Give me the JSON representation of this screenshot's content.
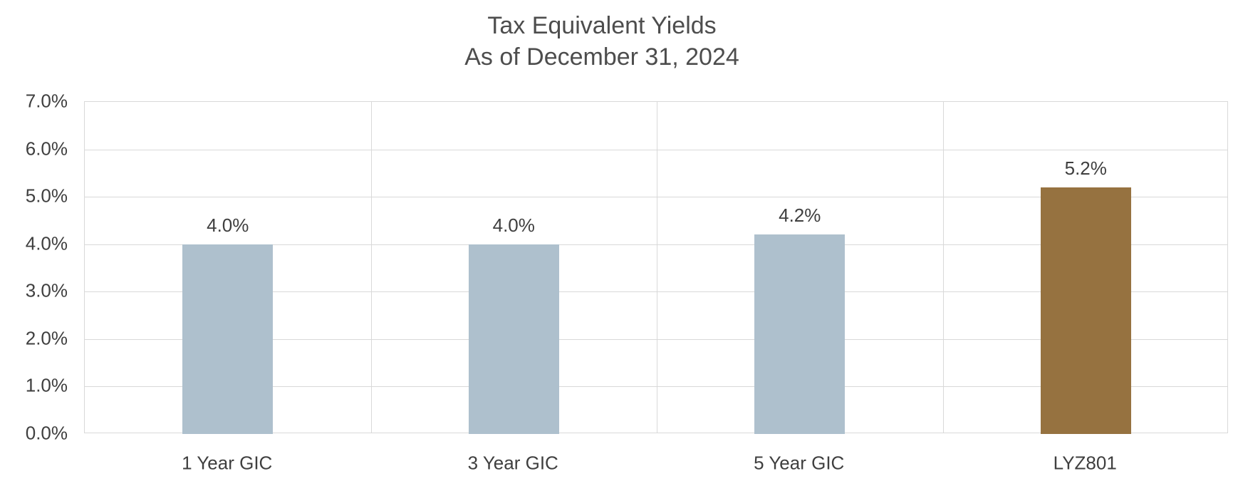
{
  "chart_data": {
    "type": "bar",
    "title": "Tax Equivalent Yields",
    "subtitle": "As of December 31, 2024",
    "categories": [
      "1 Year GIC",
      "3 Year GIC",
      "5 Year GIC",
      "LYZ801"
    ],
    "values": [
      4.0,
      4.0,
      4.2,
      5.2
    ],
    "data_labels": [
      "4.0%",
      "4.0%",
      "4.2%",
      "5.2%"
    ],
    "bar_colors": [
      "#aec0cd",
      "#aec0cd",
      "#aec0cd",
      "#967240"
    ],
    "y_tick_labels": [
      "0.0%",
      "1.0%",
      "2.0%",
      "3.0%",
      "4.0%",
      "5.0%",
      "6.0%",
      "7.0%"
    ],
    "ylim": [
      0,
      7
    ],
    "y_tick_interval": 1.0,
    "grid": true,
    "legend": "none",
    "colors": {
      "bar_default": "#aec0cd",
      "bar_highlight": "#967240",
      "gridline": "#d9d9d9",
      "title_text": "#4d4d4d",
      "label_text": "#3f3f3f",
      "background": "#ffffff"
    }
  }
}
